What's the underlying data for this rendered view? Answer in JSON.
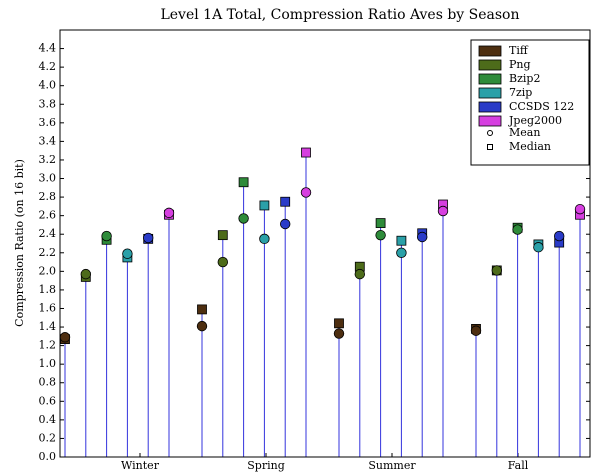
{
  "chart_data": {
    "type": "stem",
    "title": "Level 1A Total, Compression Ratio Aves by Season",
    "y_label": "Compression Ratio (on 16 bit)",
    "categories": [
      "Winter",
      "Spring",
      "Summer",
      "Fall"
    ],
    "stem_color": "#3333dd",
    "marker_labels": {
      "mean": "Mean",
      "median": "Median"
    },
    "series": [
      {
        "name": "Tiff",
        "color": "#4d2e10",
        "mean": [
          1.29,
          1.41,
          1.33,
          1.36
        ],
        "median": [
          1.27,
          1.59,
          1.44,
          1.38
        ]
      },
      {
        "name": "Png",
        "color": "#4d6b1a",
        "mean": [
          1.97,
          2.1,
          1.97,
          2.01
        ],
        "median": [
          1.94,
          2.39,
          2.05,
          2.01
        ]
      },
      {
        "name": "Bzip2",
        "color": "#2e8b3a",
        "mean": [
          2.38,
          2.57,
          2.39,
          2.45
        ],
        "median": [
          2.34,
          2.96,
          2.52,
          2.47
        ]
      },
      {
        "name": "7zip",
        "color": "#2aa0a8",
        "mean": [
          2.19,
          2.35,
          2.2,
          2.26
        ],
        "median": [
          2.15,
          2.71,
          2.33,
          2.29
        ]
      },
      {
        "name": "CCSDS 122",
        "color": "#2a3bc8",
        "mean": [
          2.36,
          2.51,
          2.37,
          2.38
        ],
        "median": [
          2.35,
          2.75,
          2.41,
          2.31
        ]
      },
      {
        "name": "Jpeg2000",
        "color": "#d63fe0",
        "mean": [
          2.63,
          2.85,
          2.65,
          2.67
        ],
        "median": [
          2.61,
          3.28,
          2.72,
          2.61
        ]
      }
    ],
    "ylim": [
      0,
      4.6
    ],
    "yticks": [
      {
        "value": 0,
        "label": "0.0"
      },
      0.2,
      0.4,
      0.6,
      0.8,
      {
        "value": 1,
        "label": "1.0"
      },
      1.2,
      1.4,
      1.6,
      1.8,
      {
        "value": 2,
        "label": "2.0"
      },
      2.2,
      2.4,
      2.6,
      2.8,
      {
        "value": 3,
        "label": "3.0"
      },
      3.2,
      3.4,
      3.6,
      3.8,
      {
        "value": 4,
        "label": "4.0"
      },
      4.2,
      4.4
    ],
    "legend": "upper right"
  }
}
